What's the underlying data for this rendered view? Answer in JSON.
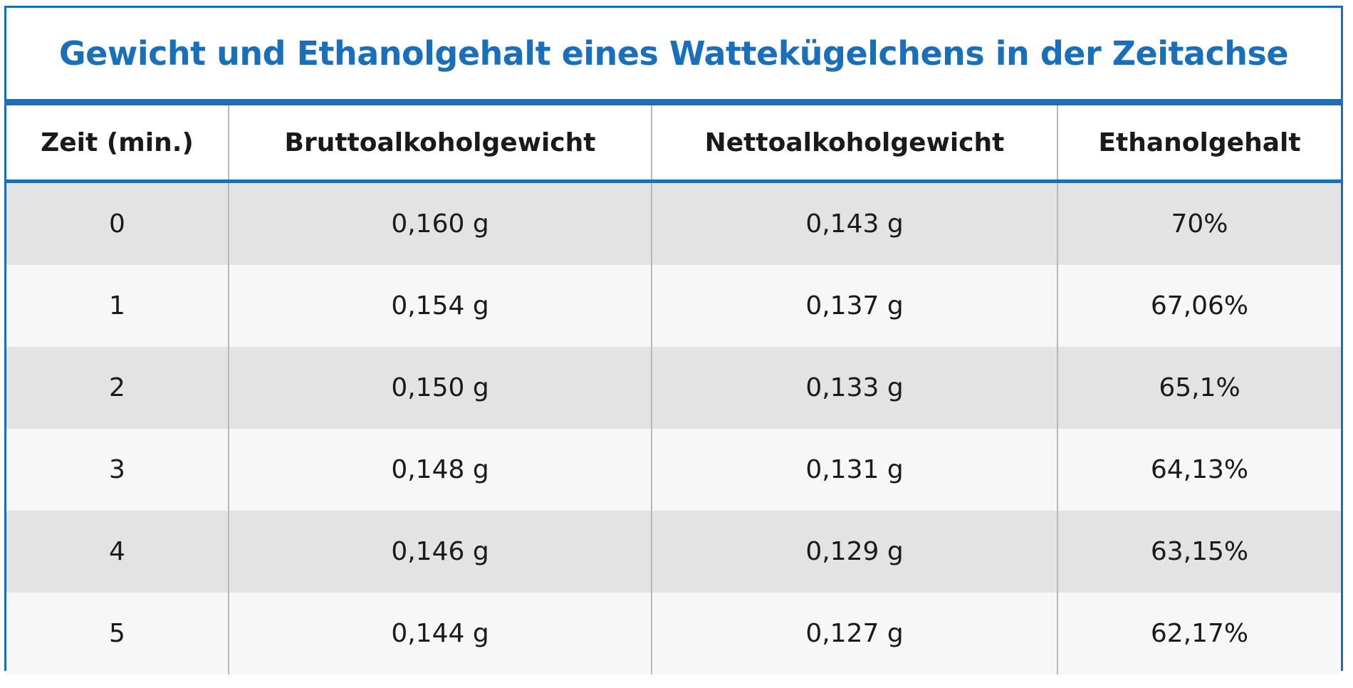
{
  "chart_data": {
    "type": "table",
    "title": "Gewicht und Ethanolgehalt eines Wattekügelchens in der Zeitachse",
    "columns": [
      "Zeit (min.)",
      "Bruttoalkoholgewicht",
      "Nettoalkoholgewicht",
      "Ethanolgehalt"
    ],
    "rows": [
      [
        "0",
        "0,160 g",
        "0,143 g",
        "70%"
      ],
      [
        "1",
        "0,154 g",
        "0,137 g",
        "67,06%"
      ],
      [
        "2",
        "0,150 g",
        "0,133 g",
        "65,1%"
      ],
      [
        "3",
        "0,148 g",
        "0,131 g",
        "64,13%"
      ],
      [
        "4",
        "0,146 g",
        "0,129 g",
        "63,15%"
      ],
      [
        "5",
        "0,144 g",
        "0,127 g",
        "62,17%"
      ]
    ]
  },
  "colors": {
    "accent": "#1a6fba",
    "row_shaded": "#e3e3e3",
    "row_light": "#f7f7f7",
    "grid_line": "#b8b8b8",
    "text": "#1a1a1a"
  }
}
